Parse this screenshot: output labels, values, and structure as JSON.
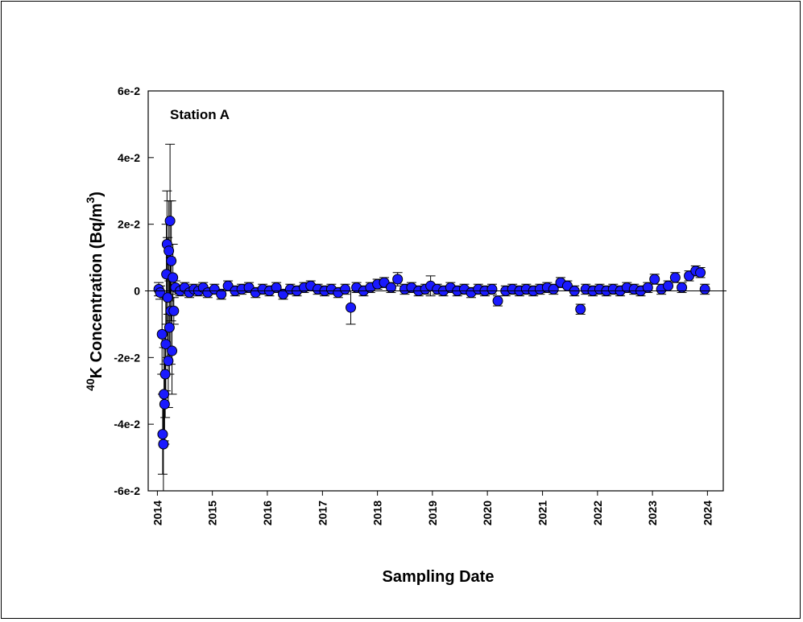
{
  "chart_data": {
    "type": "scatter",
    "title": "",
    "annotation": "Station A",
    "xlabel": "Sampling Date",
    "ylabel": {
      "sup1": "40",
      "main": "K Concentration (Bq/m",
      "sup2": "3",
      "close": ")"
    },
    "xlim": [
      "2013-11-01",
      "2024-04-15"
    ],
    "ylim": [
      -0.06,
      0.06
    ],
    "x_ticks": [
      "2014",
      "2015",
      "2016",
      "2017",
      "2018",
      "2019",
      "2020",
      "2021",
      "2022",
      "2023",
      "2024"
    ],
    "y_ticks": [
      {
        "value": 0.06,
        "label": "6e-2"
      },
      {
        "value": 0.04,
        "label": "4e-2"
      },
      {
        "value": 0.02,
        "label": "2e-2"
      },
      {
        "value": 0,
        "label": "0"
      },
      {
        "value": -0.02,
        "label": "-2e-2"
      },
      {
        "value": -0.04,
        "label": "-4e-2"
      },
      {
        "value": -0.06,
        "label": "-6e-2"
      }
    ],
    "grid": false,
    "marker_color": "#1a1aff",
    "marker_edge": "#000000",
    "series": [
      {
        "points": [
          {
            "x": "2014-01-10",
            "y": 0.0005,
            "err": 0.002
          },
          {
            "x": "2014-01-20",
            "y": -0.0005,
            "err": 0.002
          },
          {
            "x": "2014-02-01",
            "y": -0.013,
            "err": 0.012
          },
          {
            "x": "2014-02-05",
            "y": -0.043,
            "err": 0.012
          },
          {
            "x": "2014-02-10",
            "y": -0.046,
            "err": 0.015
          },
          {
            "x": "2014-02-14",
            "y": -0.031,
            "err": 0.014
          },
          {
            "x": "2014-02-18",
            "y": -0.034,
            "err": 0.012
          },
          {
            "x": "2014-02-22",
            "y": -0.025,
            "err": 0.013
          },
          {
            "x": "2014-02-26",
            "y": -0.016,
            "err": 0.014
          },
          {
            "x": "2014-03-02",
            "y": 0.005,
            "err": 0.015
          },
          {
            "x": "2014-03-06",
            "y": 0.014,
            "err": 0.016
          },
          {
            "x": "2014-03-10",
            "y": -0.002,
            "err": 0.018
          },
          {
            "x": "2014-03-14",
            "y": -0.021,
            "err": 0.014
          },
          {
            "x": "2014-03-18",
            "y": 0.012,
            "err": 0.015
          },
          {
            "x": "2014-03-22",
            "y": -0.011,
            "err": 0.014
          },
          {
            "x": "2014-03-26",
            "y": 0.021,
            "err": 0.023
          },
          {
            "x": "2014-03-30",
            "y": -0.006,
            "err": 0.016
          },
          {
            "x": "2014-04-03",
            "y": 0.009,
            "err": 0.018
          },
          {
            "x": "2014-04-08",
            "y": -0.018,
            "err": 0.013
          },
          {
            "x": "2014-04-14",
            "y": 0.004,
            "err": 0.01
          },
          {
            "x": "2014-04-20",
            "y": -0.006,
            "err": 0.004
          },
          {
            "x": "2014-05-01",
            "y": 0.001,
            "err": 0.002
          },
          {
            "x": "2014-06-01",
            "y": 0.0,
            "err": 0.0015
          },
          {
            "x": "2014-07-01",
            "y": 0.001,
            "err": 0.0015
          },
          {
            "x": "2014-08-01",
            "y": -0.0005,
            "err": 0.0015
          },
          {
            "x": "2014-09-01",
            "y": 0.0005,
            "err": 0.0015
          },
          {
            "x": "2014-10-01",
            "y": 0.0,
            "err": 0.0015
          },
          {
            "x": "2014-11-01",
            "y": 0.001,
            "err": 0.0015
          },
          {
            "x": "2014-12-01",
            "y": -0.0005,
            "err": 0.0015
          },
          {
            "x": "2015-01-15",
            "y": 0.0005,
            "err": 0.0015
          },
          {
            "x": "2015-03-01",
            "y": -0.001,
            "err": 0.0015
          },
          {
            "x": "2015-04-15",
            "y": 0.0015,
            "err": 0.0015
          },
          {
            "x": "2015-06-01",
            "y": 0.0,
            "err": 0.0015
          },
          {
            "x": "2015-07-15",
            "y": 0.0005,
            "err": 0.0015
          },
          {
            "x": "2015-09-01",
            "y": 0.001,
            "err": 0.0015
          },
          {
            "x": "2015-10-15",
            "y": -0.0005,
            "err": 0.0015
          },
          {
            "x": "2015-12-01",
            "y": 0.0005,
            "err": 0.0015
          },
          {
            "x": "2016-01-15",
            "y": 0.0,
            "err": 0.0015
          },
          {
            "x": "2016-03-01",
            "y": 0.001,
            "err": 0.0015
          },
          {
            "x": "2016-04-15",
            "y": -0.001,
            "err": 0.0015
          },
          {
            "x": "2016-06-01",
            "y": 0.0005,
            "err": 0.0015
          },
          {
            "x": "2016-07-15",
            "y": 0.0,
            "err": 0.0015
          },
          {
            "x": "2016-09-01",
            "y": 0.001,
            "err": 0.0015
          },
          {
            "x": "2016-10-15",
            "y": 0.0015,
            "err": 0.0015
          },
          {
            "x": "2016-12-01",
            "y": 0.0005,
            "err": 0.0015
          },
          {
            "x": "2017-01-15",
            "y": 0.0,
            "err": 0.0015
          },
          {
            "x": "2017-03-01",
            "y": 0.0005,
            "err": 0.0015
          },
          {
            "x": "2017-04-15",
            "y": -0.0005,
            "err": 0.0015
          },
          {
            "x": "2017-06-01",
            "y": 0.0005,
            "err": 0.0015
          },
          {
            "x": "2017-07-08",
            "y": -0.005,
            "err": 0.005
          },
          {
            "x": "2017-08-15",
            "y": 0.001,
            "err": 0.0015
          },
          {
            "x": "2017-10-01",
            "y": 0.0,
            "err": 0.0015
          },
          {
            "x": "2017-11-15",
            "y": 0.001,
            "err": 0.0015
          },
          {
            "x": "2018-01-01",
            "y": 0.002,
            "err": 0.0015
          },
          {
            "x": "2018-02-15",
            "y": 0.0025,
            "err": 0.0015
          },
          {
            "x": "2018-04-01",
            "y": 0.001,
            "err": 0.0015
          },
          {
            "x": "2018-05-15",
            "y": 0.0035,
            "err": 0.002
          },
          {
            "x": "2018-07-01",
            "y": 0.0005,
            "err": 0.0015
          },
          {
            "x": "2018-08-15",
            "y": 0.001,
            "err": 0.0015
          },
          {
            "x": "2018-10-01",
            "y": 0.0,
            "err": 0.0015
          },
          {
            "x": "2018-11-15",
            "y": 0.0005,
            "err": 0.0015
          },
          {
            "x": "2018-12-20",
            "y": 0.0015,
            "err": 0.003
          },
          {
            "x": "2019-02-01",
            "y": 0.0005,
            "err": 0.0015
          },
          {
            "x": "2019-03-15",
            "y": 0.0,
            "err": 0.0015
          },
          {
            "x": "2019-05-01",
            "y": 0.001,
            "err": 0.0015
          },
          {
            "x": "2019-06-15",
            "y": 0.0,
            "err": 0.0015
          },
          {
            "x": "2019-08-01",
            "y": 0.0005,
            "err": 0.0015
          },
          {
            "x": "2019-09-15",
            "y": -0.0005,
            "err": 0.0015
          },
          {
            "x": "2019-11-01",
            "y": 0.0005,
            "err": 0.0015
          },
          {
            "x": "2019-12-15",
            "y": 0.0,
            "err": 0.0015
          },
          {
            "x": "2020-02-01",
            "y": 0.0005,
            "err": 0.0015
          },
          {
            "x": "2020-03-10",
            "y": -0.003,
            "err": 0.0015
          },
          {
            "x": "2020-05-01",
            "y": 0.0,
            "err": 0.0015
          },
          {
            "x": "2020-06-15",
            "y": 0.0005,
            "err": 0.0015
          },
          {
            "x": "2020-08-01",
            "y": 0.0,
            "err": 0.0015
          },
          {
            "x": "2020-09-15",
            "y": 0.0005,
            "err": 0.0015
          },
          {
            "x": "2020-11-01",
            "y": 0.0,
            "err": 0.0015
          },
          {
            "x": "2020-12-15",
            "y": 0.0005,
            "err": 0.0015
          },
          {
            "x": "2021-02-01",
            "y": 0.001,
            "err": 0.0015
          },
          {
            "x": "2021-03-15",
            "y": 0.0005,
            "err": 0.0015
          },
          {
            "x": "2021-05-01",
            "y": 0.0025,
            "err": 0.0015
          },
          {
            "x": "2021-06-15",
            "y": 0.0015,
            "err": 0.0015
          },
          {
            "x": "2021-08-01",
            "y": 0.0,
            "err": 0.0015
          },
          {
            "x": "2021-09-10",
            "y": -0.0055,
            "err": 0.0015
          },
          {
            "x": "2021-10-15",
            "y": 0.0005,
            "err": 0.0015
          },
          {
            "x": "2021-12-01",
            "y": 0.0,
            "err": 0.0015
          },
          {
            "x": "2022-01-15",
            "y": 0.0005,
            "err": 0.0015
          },
          {
            "x": "2022-03-01",
            "y": 0.0,
            "err": 0.0015
          },
          {
            "x": "2022-04-15",
            "y": 0.0005,
            "err": 0.0015
          },
          {
            "x": "2022-06-01",
            "y": 0.0,
            "err": 0.0015
          },
          {
            "x": "2022-07-15",
            "y": 0.001,
            "err": 0.0015
          },
          {
            "x": "2022-09-01",
            "y": 0.0005,
            "err": 0.0015
          },
          {
            "x": "2022-10-15",
            "y": 0.0,
            "err": 0.0015
          },
          {
            "x": "2022-12-01",
            "y": 0.001,
            "err": 0.0015
          },
          {
            "x": "2023-01-15",
            "y": 0.0035,
            "err": 0.0015
          },
          {
            "x": "2023-03-01",
            "y": 0.0005,
            "err": 0.0015
          },
          {
            "x": "2023-04-15",
            "y": 0.0015,
            "err": 0.0015
          },
          {
            "x": "2023-06-01",
            "y": 0.004,
            "err": 0.0015
          },
          {
            "x": "2023-07-15",
            "y": 0.001,
            "err": 0.0015
          },
          {
            "x": "2023-09-01",
            "y": 0.0045,
            "err": 0.0015
          },
          {
            "x": "2023-10-15",
            "y": 0.006,
            "err": 0.0015
          },
          {
            "x": "2023-11-15",
            "y": 0.0055,
            "err": 0.0015
          },
          {
            "x": "2023-12-15",
            "y": 0.0005,
            "err": 0.0015
          }
        ]
      }
    ]
  }
}
